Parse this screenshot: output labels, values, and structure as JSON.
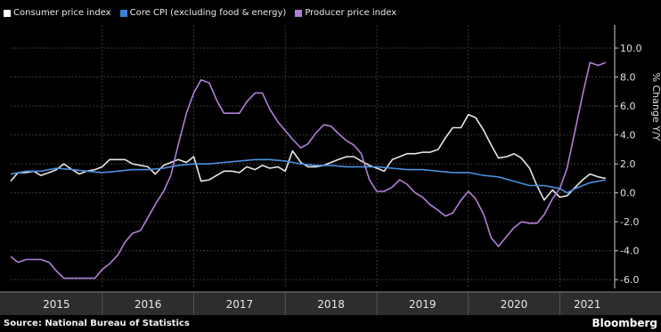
{
  "legend_placement": "top-left",
  "source_text": "Source: National Bureau of Statistics",
  "brand": "Bloomberg",
  "background_color": "#000000",
  "chart_data": {
    "type": "line",
    "ylabel": "% Change Y/Y",
    "ylim": [
      -6.6,
      11.6
    ],
    "xlim": [
      2015.0,
      2021.58
    ],
    "y_ticks": [
      10.0,
      8.0,
      6.0,
      4.0,
      2.0,
      0.0,
      -2.0,
      -4.0,
      -6.0
    ],
    "y_tick_labels": [
      "10.0",
      "8.0",
      "6.0",
      "4.0",
      "2.0",
      "0.0",
      "-2.0",
      "-4.0",
      "-6.0"
    ],
    "x_tick_labels": [
      {
        "label": "2015",
        "x": 2015.5
      },
      {
        "label": "2016",
        "x": 2016.5
      },
      {
        "label": "2017",
        "x": 2017.5
      },
      {
        "label": "2018",
        "x": 2018.5
      },
      {
        "label": "2019",
        "x": 2019.5
      },
      {
        "label": "2020",
        "x": 2020.5
      },
      {
        "label": "2021",
        "x": 2021.3
      }
    ],
    "year_boundaries": [
      2016,
      2017,
      2018,
      2019,
      2020,
      2021
    ],
    "grid": true,
    "series": [
      {
        "name": "Consumer price index",
        "color": "#e6e6e6",
        "points": [
          [
            2015.0,
            0.8
          ],
          [
            2015.08,
            1.4
          ],
          [
            2015.17,
            1.4
          ],
          [
            2015.25,
            1.5
          ],
          [
            2015.33,
            1.2
          ],
          [
            2015.42,
            1.4
          ],
          [
            2015.5,
            1.6
          ],
          [
            2015.58,
            2.0
          ],
          [
            2015.67,
            1.6
          ],
          [
            2015.75,
            1.3
          ],
          [
            2015.83,
            1.5
          ],
          [
            2015.92,
            1.6
          ],
          [
            2016.0,
            1.8
          ],
          [
            2016.08,
            2.3
          ],
          [
            2016.17,
            2.3
          ],
          [
            2016.25,
            2.3
          ],
          [
            2016.33,
            2.0
          ],
          [
            2016.42,
            1.9
          ],
          [
            2016.5,
            1.8
          ],
          [
            2016.58,
            1.3
          ],
          [
            2016.67,
            1.9
          ],
          [
            2016.75,
            2.1
          ],
          [
            2016.83,
            2.3
          ],
          [
            2016.92,
            2.1
          ],
          [
            2017.0,
            2.5
          ],
          [
            2017.08,
            0.8
          ],
          [
            2017.17,
            0.9
          ],
          [
            2017.25,
            1.2
          ],
          [
            2017.33,
            1.5
          ],
          [
            2017.42,
            1.5
          ],
          [
            2017.5,
            1.4
          ],
          [
            2017.58,
            1.8
          ],
          [
            2017.67,
            1.6
          ],
          [
            2017.75,
            1.9
          ],
          [
            2017.83,
            1.7
          ],
          [
            2017.92,
            1.8
          ],
          [
            2018.0,
            1.5
          ],
          [
            2018.08,
            2.9
          ],
          [
            2018.17,
            2.1
          ],
          [
            2018.25,
            1.8
          ],
          [
            2018.33,
            1.8
          ],
          [
            2018.42,
            1.9
          ],
          [
            2018.5,
            2.1
          ],
          [
            2018.58,
            2.3
          ],
          [
            2018.67,
            2.5
          ],
          [
            2018.75,
            2.5
          ],
          [
            2018.83,
            2.2
          ],
          [
            2018.92,
            1.9
          ],
          [
            2019.0,
            1.7
          ],
          [
            2019.08,
            1.5
          ],
          [
            2019.17,
            2.3
          ],
          [
            2019.25,
            2.5
          ],
          [
            2019.33,
            2.7
          ],
          [
            2019.42,
            2.7
          ],
          [
            2019.5,
            2.8
          ],
          [
            2019.58,
            2.8
          ],
          [
            2019.67,
            3.0
          ],
          [
            2019.75,
            3.8
          ],
          [
            2019.83,
            4.5
          ],
          [
            2019.92,
            4.5
          ],
          [
            2020.0,
            5.4
          ],
          [
            2020.08,
            5.2
          ],
          [
            2020.17,
            4.3
          ],
          [
            2020.25,
            3.3
          ],
          [
            2020.33,
            2.4
          ],
          [
            2020.42,
            2.5
          ],
          [
            2020.5,
            2.7
          ],
          [
            2020.58,
            2.4
          ],
          [
            2020.67,
            1.7
          ],
          [
            2020.75,
            0.5
          ],
          [
            2020.83,
            -0.5
          ],
          [
            2020.92,
            0.2
          ],
          [
            2021.0,
            -0.3
          ],
          [
            2021.08,
            -0.2
          ],
          [
            2021.17,
            0.4
          ],
          [
            2021.25,
            0.9
          ],
          [
            2021.33,
            1.3
          ],
          [
            2021.42,
            1.1
          ],
          [
            2021.5,
            1.0
          ]
        ]
      },
      {
        "name": "Core CPI (excluding food & energy)",
        "color": "#4a90e2",
        "points": [
          [
            2015.0,
            1.3
          ],
          [
            2015.17,
            1.5
          ],
          [
            2015.33,
            1.5
          ],
          [
            2015.5,
            1.7
          ],
          [
            2015.67,
            1.6
          ],
          [
            2015.83,
            1.5
          ],
          [
            2016.0,
            1.4
          ],
          [
            2016.17,
            1.5
          ],
          [
            2016.33,
            1.6
          ],
          [
            2016.5,
            1.6
          ],
          [
            2016.67,
            1.7
          ],
          [
            2016.83,
            1.9
          ],
          [
            2017.0,
            2.0
          ],
          [
            2017.17,
            2.0
          ],
          [
            2017.33,
            2.1
          ],
          [
            2017.5,
            2.2
          ],
          [
            2017.67,
            2.3
          ],
          [
            2017.83,
            2.3
          ],
          [
            2018.0,
            2.2
          ],
          [
            2018.17,
            2.0
          ],
          [
            2018.33,
            1.9
          ],
          [
            2018.5,
            1.9
          ],
          [
            2018.67,
            1.8
          ],
          [
            2018.83,
            1.8
          ],
          [
            2019.0,
            1.8
          ],
          [
            2019.17,
            1.7
          ],
          [
            2019.33,
            1.6
          ],
          [
            2019.5,
            1.6
          ],
          [
            2019.67,
            1.5
          ],
          [
            2019.83,
            1.4
          ],
          [
            2020.0,
            1.4
          ],
          [
            2020.17,
            1.2
          ],
          [
            2020.33,
            1.1
          ],
          [
            2020.5,
            0.8
          ],
          [
            2020.67,
            0.5
          ],
          [
            2020.83,
            0.5
          ],
          [
            2021.0,
            0.3
          ],
          [
            2021.08,
            0.0
          ],
          [
            2021.17,
            0.3
          ],
          [
            2021.33,
            0.7
          ],
          [
            2021.5,
            0.9
          ]
        ]
      },
      {
        "name": "Producer price index",
        "color": "#b07fd6",
        "points": [
          [
            2015.0,
            -4.4
          ],
          [
            2015.08,
            -4.8
          ],
          [
            2015.17,
            -4.6
          ],
          [
            2015.33,
            -4.6
          ],
          [
            2015.42,
            -4.8
          ],
          [
            2015.5,
            -5.4
          ],
          [
            2015.58,
            -5.9
          ],
          [
            2015.67,
            -5.9
          ],
          [
            2015.83,
            -5.9
          ],
          [
            2015.92,
            -5.9
          ],
          [
            2016.0,
            -5.3
          ],
          [
            2016.08,
            -4.9
          ],
          [
            2016.17,
            -4.3
          ],
          [
            2016.25,
            -3.4
          ],
          [
            2016.33,
            -2.8
          ],
          [
            2016.42,
            -2.6
          ],
          [
            2016.5,
            -1.7
          ],
          [
            2016.58,
            -0.8
          ],
          [
            2016.67,
            0.1
          ],
          [
            2016.75,
            1.2
          ],
          [
            2016.83,
            3.3
          ],
          [
            2016.92,
            5.5
          ],
          [
            2017.0,
            6.9
          ],
          [
            2017.08,
            7.8
          ],
          [
            2017.17,
            7.6
          ],
          [
            2017.25,
            6.4
          ],
          [
            2017.33,
            5.5
          ],
          [
            2017.42,
            5.5
          ],
          [
            2017.5,
            5.5
          ],
          [
            2017.58,
            6.3
          ],
          [
            2017.67,
            6.9
          ],
          [
            2017.75,
            6.9
          ],
          [
            2017.83,
            5.8
          ],
          [
            2017.92,
            4.9
          ],
          [
            2018.0,
            4.3
          ],
          [
            2018.08,
            3.7
          ],
          [
            2018.17,
            3.1
          ],
          [
            2018.25,
            3.4
          ],
          [
            2018.33,
            4.1
          ],
          [
            2018.42,
            4.7
          ],
          [
            2018.5,
            4.6
          ],
          [
            2018.58,
            4.1
          ],
          [
            2018.67,
            3.6
          ],
          [
            2018.75,
            3.3
          ],
          [
            2018.83,
            2.7
          ],
          [
            2018.92,
            0.9
          ],
          [
            2019.0,
            0.1
          ],
          [
            2019.08,
            0.1
          ],
          [
            2019.17,
            0.4
          ],
          [
            2019.25,
            0.9
          ],
          [
            2019.33,
            0.6
          ],
          [
            2019.42,
            0.0
          ],
          [
            2019.5,
            -0.3
          ],
          [
            2019.58,
            -0.8
          ],
          [
            2019.67,
            -1.2
          ],
          [
            2019.75,
            -1.6
          ],
          [
            2019.83,
            -1.4
          ],
          [
            2019.92,
            -0.5
          ],
          [
            2020.0,
            0.1
          ],
          [
            2020.08,
            -0.4
          ],
          [
            2020.17,
            -1.5
          ],
          [
            2020.25,
            -3.1
          ],
          [
            2020.33,
            -3.7
          ],
          [
            2020.42,
            -3.0
          ],
          [
            2020.5,
            -2.4
          ],
          [
            2020.58,
            -2.0
          ],
          [
            2020.67,
            -2.1
          ],
          [
            2020.75,
            -2.1
          ],
          [
            2020.83,
            -1.5
          ],
          [
            2020.92,
            -0.4
          ],
          [
            2021.0,
            0.3
          ],
          [
            2021.08,
            1.7
          ],
          [
            2021.17,
            4.4
          ],
          [
            2021.25,
            6.8
          ],
          [
            2021.33,
            9.0
          ],
          [
            2021.42,
            8.8
          ],
          [
            2021.5,
            9.0
          ]
        ]
      }
    ]
  }
}
